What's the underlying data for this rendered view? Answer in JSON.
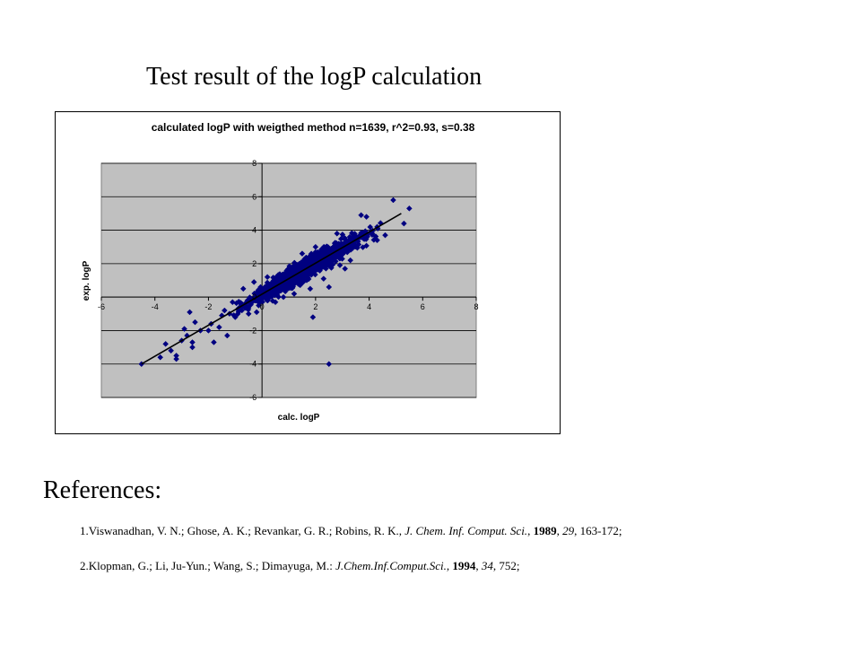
{
  "slide": {
    "title": "Test result of the logP calculation"
  },
  "chart_data": {
    "type": "scatter",
    "title": "calculated logP with weigthed method n=1639, r^2=0.93,  s=0.38",
    "xlabel": "calc. logP",
    "ylabel": "exp. logP",
    "xlim": [
      -6,
      8
    ],
    "ylim": [
      -6,
      8
    ],
    "x_ticks": [
      "-6",
      "-4",
      "-2",
      "0",
      "2",
      "4",
      "6",
      "8"
    ],
    "y_ticks": [
      "8",
      "6",
      "4",
      "2",
      "0",
      "-2",
      "-4",
      "-6"
    ],
    "grid": "horizontal",
    "plot_area_color": "#c0c0c0",
    "marker_color": "#000080",
    "marker": "diamond",
    "n_points": 1639,
    "r_squared": 0.93,
    "s": 0.38,
    "trendline": {
      "x": [
        -4.5,
        5.2
      ],
      "y": [
        -4.0,
        5.0
      ],
      "color": "#000000"
    },
    "series": [
      {
        "values_xy": [
          [
            -4.5,
            -4.0
          ],
          [
            -3.8,
            -3.6
          ],
          [
            -3.4,
            -3.2
          ],
          [
            -3.2,
            -3.7
          ],
          [
            -3.0,
            -2.6
          ],
          [
            -2.9,
            -1.9
          ],
          [
            -2.6,
            -2.7
          ],
          [
            -2.6,
            -3.0
          ],
          [
            -2.3,
            -2.0
          ],
          [
            -2.0,
            -2.0
          ],
          [
            -1.6,
            -1.8
          ],
          [
            -1.5,
            -1.1
          ],
          [
            -1.3,
            -2.3
          ],
          [
            -1.1,
            -0.3
          ],
          [
            -0.8,
            -0.6
          ],
          [
            -0.5,
            -1.0
          ],
          [
            0.2,
            1.2
          ],
          [
            0.4,
            0.3
          ],
          [
            -1.4,
            -0.8
          ],
          [
            -2.5,
            -1.5
          ],
          [
            -3.6,
            -2.8
          ],
          [
            -2.8,
            -2.3
          ],
          [
            -1.9,
            -1.6
          ],
          [
            -1.0,
            -1.2
          ],
          [
            -0.2,
            -0.9
          ],
          [
            0.8,
            0.0
          ],
          [
            1.5,
            2.6
          ],
          [
            2.3,
            1.1
          ],
          [
            2.8,
            3.8
          ],
          [
            3.3,
            2.2
          ],
          [
            3.9,
            4.8
          ],
          [
            4.3,
            3.4
          ],
          [
            4.9,
            5.8
          ],
          [
            5.3,
            4.4
          ],
          [
            5.5,
            5.3
          ],
          [
            0.5,
            -0.3
          ],
          [
            1.2,
            0.2
          ],
          [
            -0.3,
            0.9
          ],
          [
            2.0,
            3.0
          ],
          [
            3.1,
            1.7
          ],
          [
            -3.2,
            -3.5
          ],
          [
            -0.7,
            0.5
          ],
          [
            1.8,
            0.5
          ],
          [
            4.6,
            3.7
          ],
          [
            3.7,
            4.9
          ],
          [
            -2.7,
            -0.9
          ],
          [
            -1.8,
            -2.7
          ],
          [
            2.5,
            0.6
          ],
          [
            1.9,
            -1.2
          ],
          [
            2.5,
            -4.0
          ]
        ]
      }
    ]
  },
  "references": {
    "heading": "References:",
    "items": [
      {
        "prefix": "1.Viswanadhan, V. N.; Ghose, A. K.; Revankar, G. R.; Robins, R. K., ",
        "journal": "J. Chem. Inf. Comput. Sci.",
        "sep1": ", ",
        "year": "1989",
        "sep2": ", ",
        "volume": "29",
        "pages": ", 163-172;"
      },
      {
        "prefix": "2.Klopman, G.; Li, Ju-Yun.; Wang, S.; Dimayuga, M.: ",
        "journal": "J.Chem.Inf.Comput.Sci.",
        "sep1": ", ",
        "year": "1994",
        "sep2": ", ",
        "volume": "34",
        "pages": ", 752;"
      }
    ]
  }
}
